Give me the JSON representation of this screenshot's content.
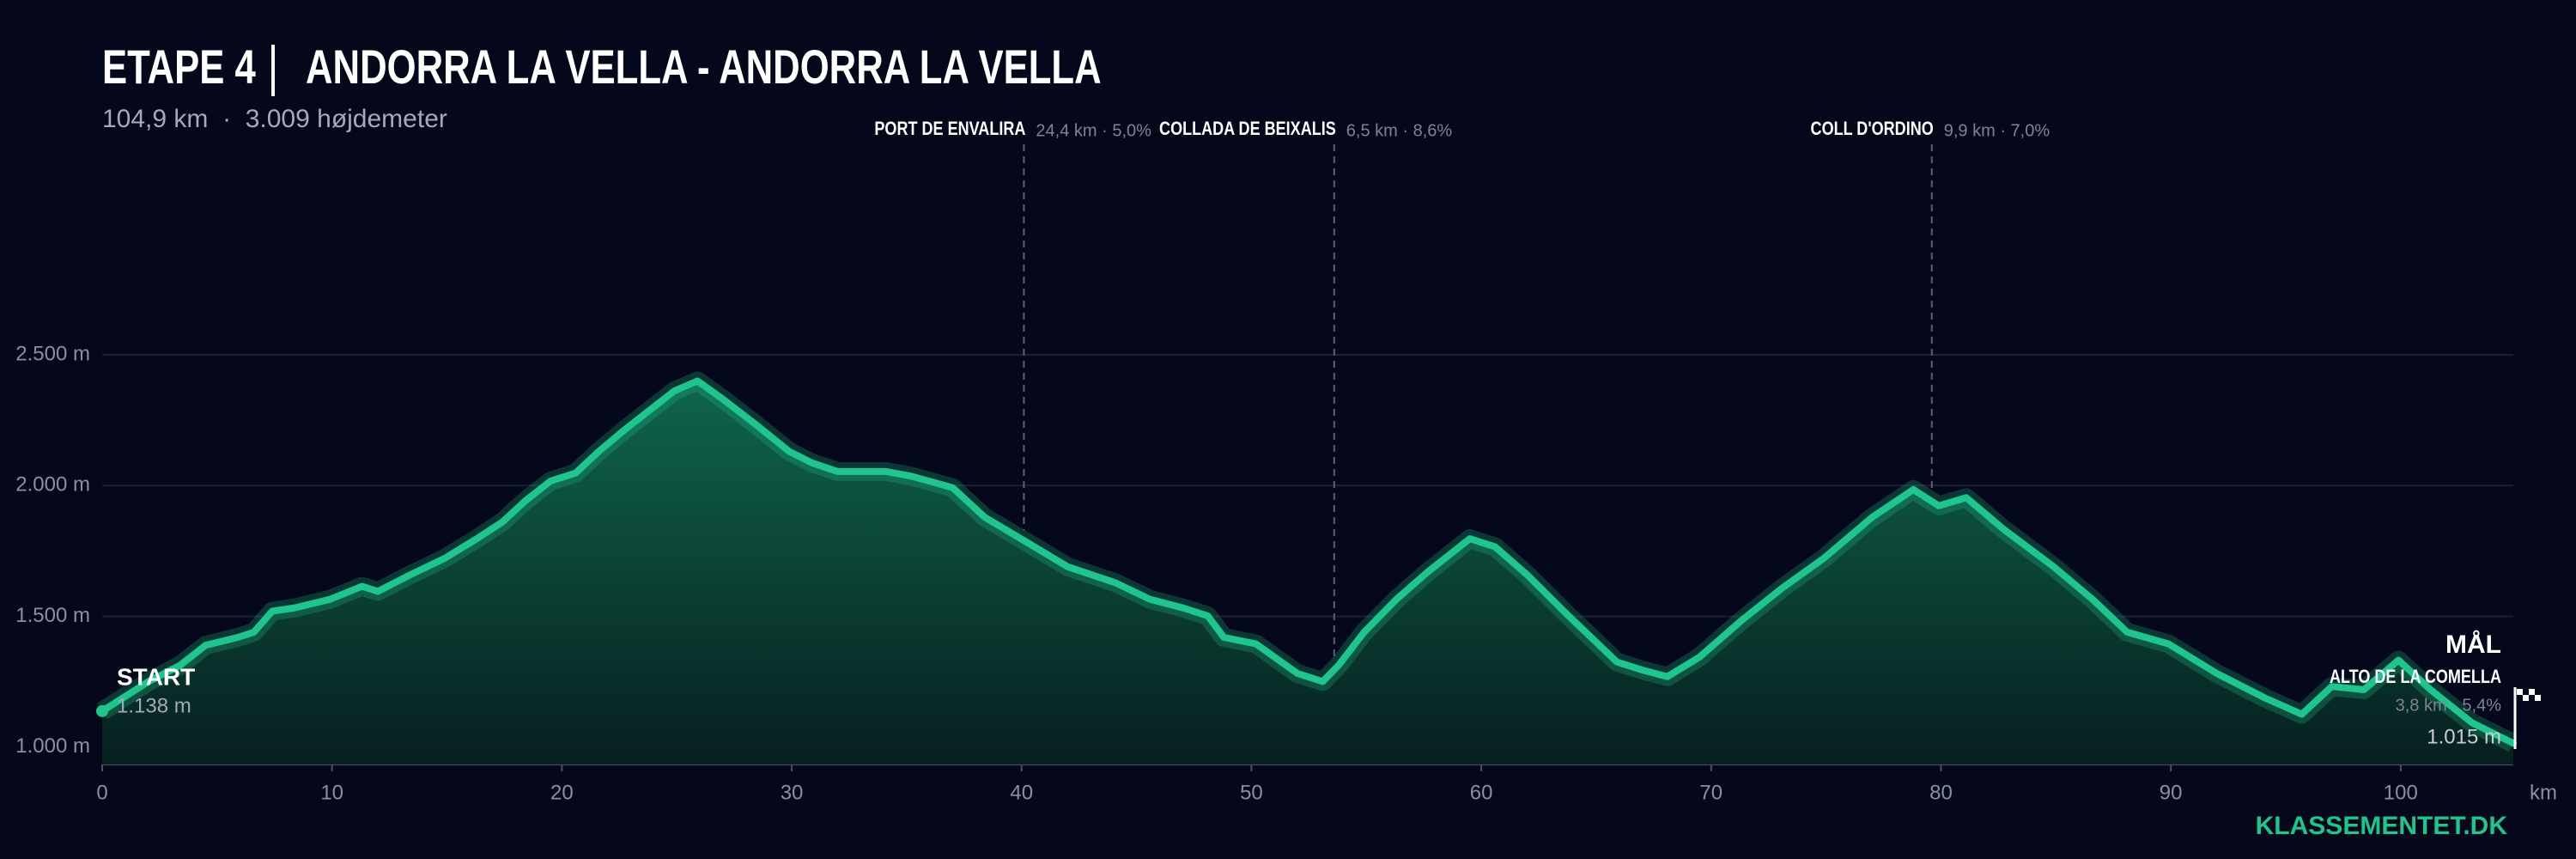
{
  "chart_data": {
    "type": "area",
    "stage": "ETAPE 4",
    "title": "ANDORRA LA VELLA - ANDORRA LA VELLA",
    "subtitle": "104,9 km  ·  3.009 højdemeter",
    "x_label": "km",
    "brand": "KLASSEMENTET.DK",
    "start_label": "START",
    "start_value_label": "1.138 m",
    "finish_label": "MÅL",
    "finish_value_label": "1.015 m",
    "finish_climb": {
      "name": "ALTO DE LA COMELLA",
      "stats": "3,8 km · 5,4%"
    },
    "climbs": [
      {
        "name": "PORT DE ENVALIRA",
        "stats": "24,4 km · 5,0%",
        "km": 40.1
      },
      {
        "name": "COLLADA DE BEIXALIS",
        "stats": "6,5 km · 8,6%",
        "km": 53.6
      },
      {
        "name": "COLL D'ORDINO",
        "stats": "9,9 km · 7,0%",
        "km": 79.6
      }
    ],
    "color": "#1fc58c",
    "x": [
      0,
      2,
      3.4,
      4.5,
      5.9,
      6.6,
      7.4,
      8.4,
      9.9,
      11.3,
      12,
      13.4,
      14.9,
      16.3,
      17.4,
      18.4,
      19.5,
      20.6,
      21.6,
      22.7,
      23.8,
      24.9,
      25.9,
      27,
      28.4,
      29.9,
      30.9,
      32,
      34.1,
      35.2,
      37,
      38.4,
      40.2,
      42,
      44.1,
      45.6,
      47,
      48.1,
      48.8,
      50.2,
      52,
      53.1,
      53.8,
      54.9,
      56.3,
      57.7,
      59.5,
      60.6,
      62,
      63.8,
      65.9,
      67,
      68.1,
      69.5,
      71.3,
      73.1,
      74.9,
      77,
      78.8,
      79.9,
      81.1,
      82.7,
      84.9,
      86.6,
      88.1,
      89.9,
      92,
      94.1,
      95.7,
      97,
      98.4,
      99.9,
      101.3,
      103.1,
      104.9
    ],
    "values": [
      1138,
      1250,
      1314,
      1390,
      1420,
      1440,
      1520,
      1533,
      1565,
      1615,
      1596,
      1659,
      1722,
      1797,
      1860,
      1941,
      2017,
      2048,
      2130,
      2211,
      2287,
      2362,
      2400,
      2331,
      2236,
      2130,
      2086,
      2054,
      2054,
      2036,
      1992,
      1879,
      1785,
      1690,
      1628,
      1565,
      1533,
      1502,
      1420,
      1395,
      1282,
      1251,
      1314,
      1440,
      1565,
      1672,
      1797,
      1766,
      1659,
      1502,
      1326,
      1295,
      1270,
      1345,
      1483,
      1609,
      1722,
      1879,
      1985,
      1923,
      1954,
      1835,
      1690,
      1565,
      1440,
      1395,
      1282,
      1188,
      1126,
      1232,
      1220,
      1333,
      1220,
      1094,
      1015
    ],
    "xlim": [
      0,
      104.9
    ],
    "ylim": [
      934,
      2500
    ],
    "xticks": [
      0,
      10,
      20,
      30,
      40,
      50,
      60,
      70,
      80,
      90,
      100
    ],
    "yticks": [
      {
        "value": 1000,
        "label": "1.000 m"
      },
      {
        "value": 1500,
        "label": "1.500 m"
      },
      {
        "value": 2000,
        "label": "2.000 m"
      },
      {
        "value": 2500,
        "label": "2.500 m"
      }
    ],
    "grid": true
  }
}
